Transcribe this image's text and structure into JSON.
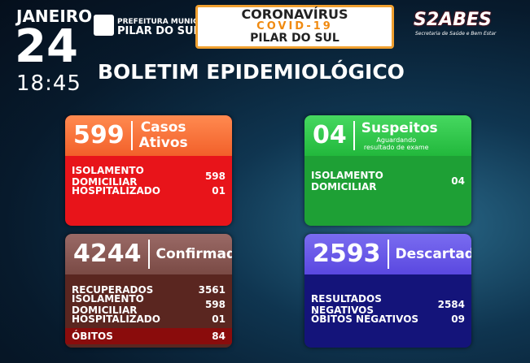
{
  "header": {
    "month": "JANEIRO",
    "day": "24",
    "time": "18:45",
    "city_logo": [
      "PREFEITURA MUNICIPAL",
      "PILAR DO SUL"
    ],
    "banner": [
      "CORONAVÍRUS",
      "COVID-19",
      "PILAR DO SUL"
    ],
    "sabes": {
      "logo": "S2ABES",
      "subtitle": "Secretaria de Saúde e Bem Estar"
    }
  },
  "title": "BOLETIM EPIDEMIOLÓGICO",
  "cards": [
    {
      "count": "599",
      "label": [
        "Casos",
        "Ativos"
      ],
      "rows": [
        [
          "ISOLAMENTO DOMICILIAR",
          "598"
        ],
        [
          "HOSPITALIZADO",
          "01"
        ]
      ]
    },
    {
      "count": "04",
      "label": [
        "Suspeitos"
      ],
      "note": "Aguardando resultado de exame",
      "rows": [
        [
          "ISOLAMENTO DOMICILIAR",
          "04"
        ]
      ]
    },
    {
      "count": "4244",
      "label": [
        "Confirmados"
      ],
      "rows": [
        [
          "RECUPERADOS",
          "3561"
        ],
        [
          "ISOLAMENTO DOMICILIAR",
          "598"
        ],
        [
          "HOSPITALIZADO",
          "01"
        ],
        [
          "ÓBITOS",
          "84"
        ]
      ]
    },
    {
      "count": "2593",
      "label": [
        "Descartados"
      ],
      "rows": [
        [
          "RESULTADOS NEGATIVOS",
          "2584"
        ],
        [
          "ÓBITOS NEGATIVOS",
          "09"
        ]
      ]
    }
  ]
}
